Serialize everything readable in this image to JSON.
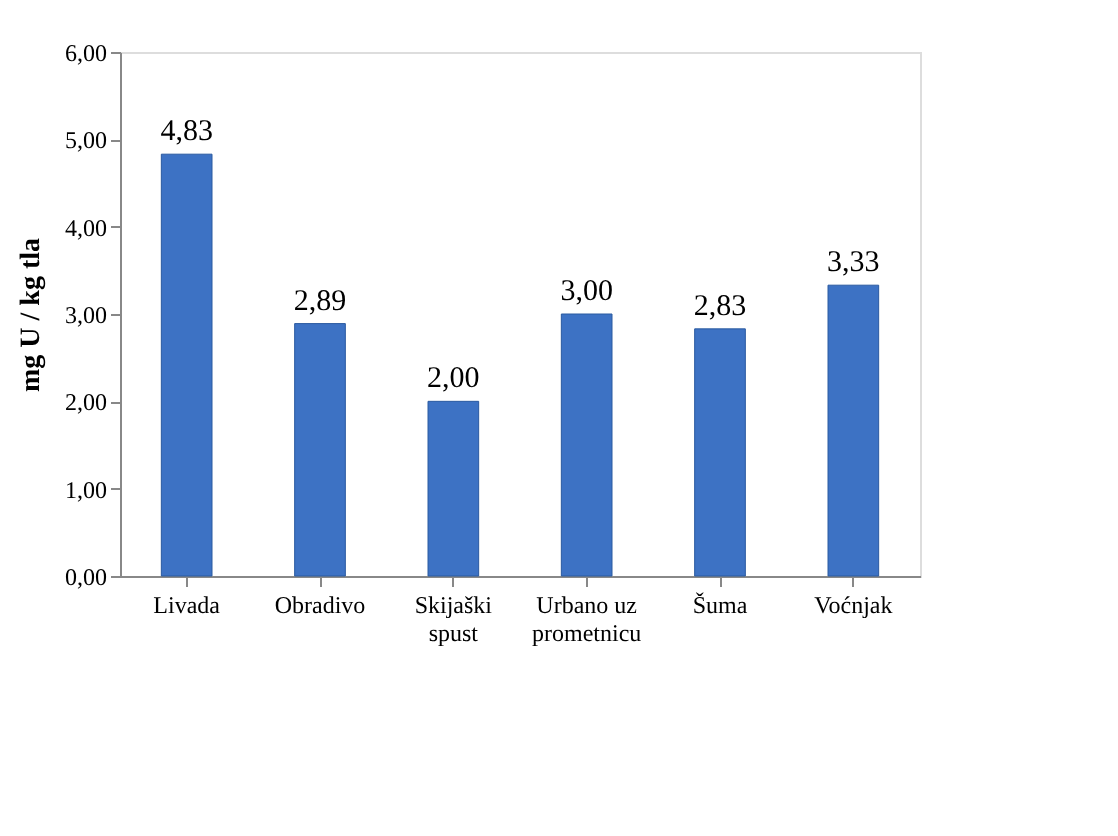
{
  "chart_data": {
    "type": "bar",
    "ylabel": "mg U / kg tla",
    "categories": [
      "Livada",
      "Obradivo",
      "Skijaški spust",
      "Urbano uz prometnicu",
      "Šuma",
      "Voćnjak"
    ],
    "values": [
      4.83,
      2.89,
      2.0,
      3.0,
      2.83,
      3.33
    ],
    "value_labels": [
      "4,83",
      "2,89",
      "2,00",
      "3,00",
      "2,83",
      "3,33"
    ],
    "color": "#3d72c4",
    "ylim": [
      0,
      6
    ],
    "yticks": [
      {
        "value": 0,
        "label": "0,00"
      },
      {
        "value": 1,
        "label": "1,00"
      },
      {
        "value": 2,
        "label": "2,00"
      },
      {
        "value": 3,
        "label": "3,00"
      },
      {
        "value": 4,
        "label": "4,00"
      },
      {
        "value": 5,
        "label": "5,00"
      },
      {
        "value": 6,
        "label": "6,00"
      }
    ],
    "grid": false
  }
}
